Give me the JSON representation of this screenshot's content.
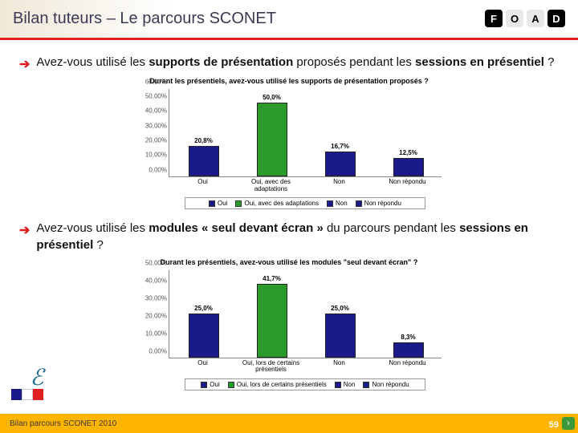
{
  "header": {
    "title": "Bilan tuteurs – Le parcours SCONET"
  },
  "foad": {
    "letters": [
      "F",
      "O",
      "A",
      "D"
    ],
    "bg": [
      "#000000",
      "#e8e8e8",
      "#e8e8e8",
      "#000000"
    ],
    "fg": [
      "#ffffff",
      "#000000",
      "#000000",
      "#ffffff"
    ]
  },
  "question1": {
    "prefix": "Avez-vous utilisé les ",
    "bold1": "supports de présentation",
    "mid1": " proposés pendant les ",
    "bold2": "sessions en présentiel",
    "suffix": " ?"
  },
  "chart1": {
    "title": "Durant les présentiels, avez-vous utilisé les supports de présentation proposés ?",
    "ylim": 60,
    "ytick_step": 10,
    "categories": [
      "Oui",
      "Oui, avec des adaptations",
      "Non",
      "Non répondu"
    ],
    "values": [
      20.8,
      50.0,
      16.7,
      12.5
    ],
    "value_labels": [
      "20,8%",
      "50,0%",
      "16,7%",
      "12,5%"
    ],
    "colors": [
      "#1a1a8a",
      "#2a9a2a",
      "#1a1a8a",
      "#1a1a8a"
    ],
    "legend": [
      "Oui",
      "Oui, avec des adaptations",
      "Non",
      "Non répondu"
    ]
  },
  "question2": {
    "prefix": "Avez-vous utilisé les ",
    "bold1": "modules « seul devant écran »",
    "mid1": " du parcours pendant les ",
    "bold2": "sessions en présentiel",
    "suffix": " ?"
  },
  "chart2": {
    "title": "Durant les présentiels, avez-vous utilisé les modules \"seul devant écran\" ?",
    "ylim": 50,
    "ytick_step": 10,
    "categories": [
      "Oui",
      "Oui, lors de certains présentiels",
      "Non",
      "Non répondu"
    ],
    "values": [
      25.0,
      41.7,
      25.0,
      8.3
    ],
    "value_labels": [
      "25,0%",
      "41,7%",
      "25,0%",
      "8,3%"
    ],
    "colors": [
      "#1a1a8a",
      "#2a9a2a",
      "#1a1a8a",
      "#1a1a8a"
    ],
    "legend": [
      "Oui",
      "Oui, lors de certains présentiels",
      "Non",
      "Non répondu"
    ]
  },
  "footer": {
    "text": "Bilan parcours SCONET 2010",
    "page": "59"
  },
  "colors": {
    "header_rule": "#e02020",
    "arrow": "#e02020",
    "footer_bg": "#ffb400"
  }
}
